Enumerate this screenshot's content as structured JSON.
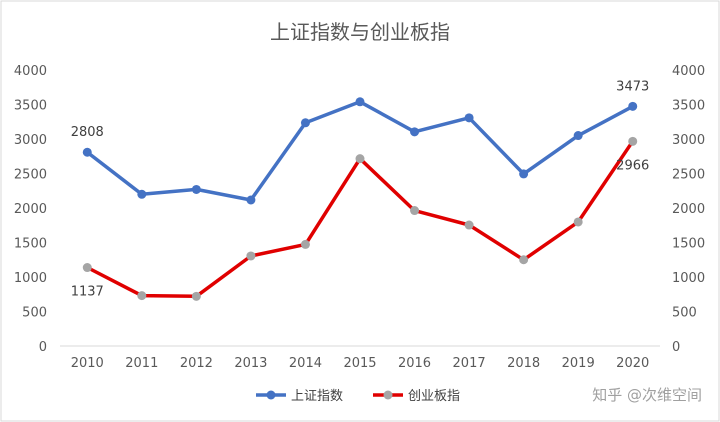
{
  "watermark": "知乎 @次维空间",
  "chart_data": {
    "type": "line",
    "title": "上证指数与创业板指",
    "categories": [
      "2010",
      "2011",
      "2012",
      "2013",
      "2014",
      "2015",
      "2016",
      "2017",
      "2018",
      "2019",
      "2020"
    ],
    "ylim": [
      0,
      4000
    ],
    "y_ticks": [
      "0",
      "500",
      "1000",
      "1500",
      "2000",
      "2500",
      "3000",
      "3500",
      "4000"
    ],
    "y2_ticks": [
      "0",
      "500",
      "1000",
      "1500",
      "2000",
      "2500",
      "3000",
      "3500",
      "4000"
    ],
    "grid": false,
    "legend_position": "bottom",
    "colors": {
      "shanghai_line": "#4472c4",
      "chinext_line": "#e00000",
      "chinext_marker": "#a5a5a5",
      "axis": "#d9d9d9"
    },
    "series": [
      {
        "name": "上证指数",
        "values": [
          2808,
          2199,
          2269,
          2116,
          3235,
          3539,
          3104,
          3307,
          2494,
          3050,
          3473
        ]
      },
      {
        "name": "创业板指",
        "values": [
          1137,
          730,
          720,
          1305,
          1472,
          2715,
          1963,
          1753,
          1250,
          1798,
          2966
        ]
      }
    ],
    "data_labels": [
      {
        "series": 0,
        "index": 0,
        "text": "2808",
        "pos": "above"
      },
      {
        "series": 1,
        "index": 0,
        "text": "1137",
        "pos": "below"
      },
      {
        "series": 0,
        "index": 10,
        "text": "3473",
        "pos": "above"
      },
      {
        "series": 1,
        "index": 10,
        "text": "2966",
        "pos": "below"
      }
    ]
  }
}
